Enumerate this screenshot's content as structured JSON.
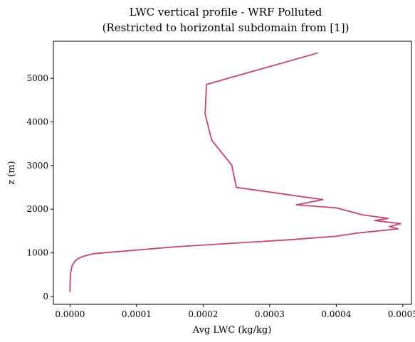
{
  "chart_data": {
    "type": "line",
    "title": "LWC vertical profile - WRF Polluted",
    "subtitle": "(Restricted to horizontal subdomain from [1])",
    "xlabel": "Avg LWC (kg/kg)",
    "ylabel": "z (m)",
    "xlim": [
      -2.5e-05,
      0.000513
    ],
    "ylim": [
      -180,
      5850
    ],
    "x_ticks": [
      0,
      0.0001,
      0.0002,
      0.0003,
      0.0004,
      0.0005
    ],
    "x_tick_labels": [
      "0.0000",
      "0.0001",
      "0.0002",
      "0.0003",
      "0.0004",
      "0.0005"
    ],
    "y_ticks": [
      0,
      1000,
      2000,
      3000,
      4000,
      5000
    ],
    "y_tick_labels": [
      "0",
      "1000",
      "2000",
      "3000",
      "4000",
      "5000"
    ],
    "grid": false,
    "legend": "none",
    "series": [
      {
        "color": "#c9436f",
        "points": [
          {
            "x": 0.0,
            "y": 110
          },
          {
            "x": 0.0,
            "y": 300
          },
          {
            "x": 1e-06,
            "y": 550
          },
          {
            "x": 3e-06,
            "y": 700
          },
          {
            "x": 7e-06,
            "y": 800
          },
          {
            "x": 1.2e-05,
            "y": 870
          },
          {
            "x": 2e-05,
            "y": 920
          },
          {
            "x": 3.5e-05,
            "y": 980
          },
          {
            "x": 0.00016,
            "y": 1140
          },
          {
            "x": 0.00033,
            "y": 1300
          },
          {
            "x": 0.0004,
            "y": 1380
          },
          {
            "x": 0.00043,
            "y": 1450
          },
          {
            "x": 0.000493,
            "y": 1550
          },
          {
            "x": 0.00048,
            "y": 1600
          },
          {
            "x": 0.000497,
            "y": 1670
          },
          {
            "x": 0.000458,
            "y": 1740
          },
          {
            "x": 0.000478,
            "y": 1790
          },
          {
            "x": 0.00044,
            "y": 1870
          },
          {
            "x": 0.00042,
            "y": 1950
          },
          {
            "x": 0.0004,
            "y": 2030
          },
          {
            "x": 0.00034,
            "y": 2100
          },
          {
            "x": 0.00038,
            "y": 2220
          },
          {
            "x": 0.00025,
            "y": 2500
          },
          {
            "x": 0.000243,
            "y": 3010
          },
          {
            "x": 0.000213,
            "y": 3580
          },
          {
            "x": 0.000203,
            "y": 4180
          },
          {
            "x": 0.000205,
            "y": 4860
          },
          {
            "x": 0.000372,
            "y": 5580
          }
        ]
      }
    ]
  }
}
